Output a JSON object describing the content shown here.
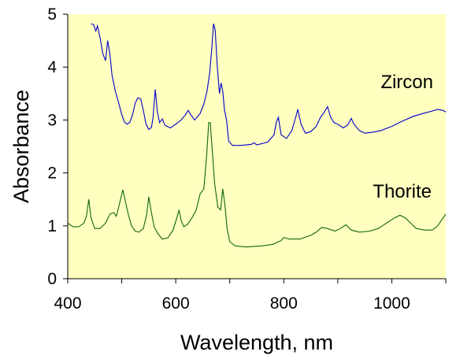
{
  "chart_data": {
    "type": "line",
    "title": "",
    "xlabel": "Wavelength, nm",
    "ylabel": "Absorbance",
    "xlim": [
      400,
      1100
    ],
    "ylim": [
      0,
      5
    ],
    "xticks": [
      400,
      600,
      800,
      1000
    ],
    "yticks": [
      0,
      1,
      2,
      3,
      4,
      5
    ],
    "grid": false,
    "legend": "inline",
    "plot_background": "#ffffc0",
    "series": [
      {
        "name": "Zircon",
        "color": "#0000cc",
        "points": [
          [
            443,
            4.82
          ],
          [
            448,
            4.8
          ],
          [
            452,
            4.68
          ],
          [
            455,
            4.78
          ],
          [
            460,
            4.55
          ],
          [
            465,
            4.25
          ],
          [
            470,
            4.12
          ],
          [
            474,
            4.5
          ],
          [
            478,
            4.25
          ],
          [
            482,
            3.85
          ],
          [
            488,
            3.55
          ],
          [
            495,
            3.3
          ],
          [
            500,
            3.1
          ],
          [
            505,
            2.96
          ],
          [
            510,
            2.92
          ],
          [
            515,
            2.96
          ],
          [
            520,
            3.1
          ],
          [
            525,
            3.32
          ],
          [
            530,
            3.42
          ],
          [
            535,
            3.4
          ],
          [
            540,
            3.18
          ],
          [
            545,
            2.92
          ],
          [
            550,
            2.82
          ],
          [
            555,
            2.86
          ],
          [
            558,
            3.05
          ],
          [
            562,
            3.58
          ],
          [
            566,
            3.15
          ],
          [
            570,
            2.95
          ],
          [
            575,
            3.02
          ],
          [
            580,
            2.9
          ],
          [
            590,
            2.85
          ],
          [
            600,
            2.92
          ],
          [
            610,
            3.0
          ],
          [
            618,
            3.1
          ],
          [
            623,
            3.18
          ],
          [
            628,
            3.1
          ],
          [
            635,
            3.0
          ],
          [
            645,
            3.12
          ],
          [
            652,
            3.3
          ],
          [
            658,
            3.55
          ],
          [
            663,
            3.9
          ],
          [
            667,
            4.4
          ],
          [
            670,
            4.82
          ],
          [
            673,
            4.7
          ],
          [
            677,
            4.0
          ],
          [
            681,
            3.5
          ],
          [
            684,
            3.7
          ],
          [
            687,
            3.55
          ],
          [
            690,
            3.2
          ],
          [
            694,
            3.0
          ],
          [
            698,
            2.6
          ],
          [
            705,
            2.52
          ],
          [
            720,
            2.52
          ],
          [
            740,
            2.54
          ],
          [
            745,
            2.57
          ],
          [
            750,
            2.53
          ],
          [
            770,
            2.58
          ],
          [
            782,
            2.72
          ],
          [
            786,
            2.95
          ],
          [
            790,
            3.05
          ],
          [
            795,
            2.72
          ],
          [
            805,
            2.65
          ],
          [
            815,
            2.8
          ],
          [
            822,
            3.05
          ],
          [
            826,
            3.2
          ],
          [
            832,
            2.92
          ],
          [
            840,
            2.75
          ],
          [
            850,
            2.78
          ],
          [
            860,
            2.88
          ],
          [
            868,
            3.05
          ],
          [
            875,
            3.15
          ],
          [
            881,
            3.25
          ],
          [
            887,
            3.05
          ],
          [
            893,
            2.95
          ],
          [
            900,
            2.92
          ],
          [
            910,
            2.85
          ],
          [
            918,
            2.9
          ],
          [
            925,
            3.03
          ],
          [
            930,
            2.92
          ],
          [
            940,
            2.8
          ],
          [
            950,
            2.75
          ],
          [
            965,
            2.77
          ],
          [
            980,
            2.8
          ],
          [
            1000,
            2.88
          ],
          [
            1020,
            2.98
          ],
          [
            1040,
            3.07
          ],
          [
            1060,
            3.13
          ],
          [
            1075,
            3.17
          ],
          [
            1085,
            3.2
          ],
          [
            1095,
            3.18
          ],
          [
            1100,
            3.15
          ]
        ]
      },
      {
        "name": "Thorite",
        "color": "#116611",
        "points": [
          [
            400,
            1.05
          ],
          [
            410,
            0.98
          ],
          [
            420,
            0.98
          ],
          [
            430,
            1.05
          ],
          [
            435,
            1.2
          ],
          [
            439,
            1.5
          ],
          [
            443,
            1.15
          ],
          [
            450,
            0.95
          ],
          [
            460,
            0.95
          ],
          [
            470,
            1.05
          ],
          [
            478,
            1.22
          ],
          [
            485,
            1.25
          ],
          [
            490,
            1.18
          ],
          [
            495,
            1.38
          ],
          [
            502,
            1.68
          ],
          [
            507,
            1.45
          ],
          [
            512,
            1.22
          ],
          [
            518,
            1.0
          ],
          [
            525,
            0.9
          ],
          [
            532,
            0.88
          ],
          [
            540,
            0.95
          ],
          [
            546,
            1.2
          ],
          [
            550,
            1.55
          ],
          [
            554,
            1.3
          ],
          [
            560,
            0.98
          ],
          [
            567,
            0.85
          ],
          [
            575,
            0.75
          ],
          [
            585,
            0.77
          ],
          [
            595,
            0.92
          ],
          [
            602,
            1.15
          ],
          [
            606,
            1.3
          ],
          [
            610,
            1.1
          ],
          [
            615,
            0.98
          ],
          [
            622,
            1.03
          ],
          [
            630,
            1.15
          ],
          [
            638,
            1.3
          ],
          [
            645,
            1.6
          ],
          [
            652,
            1.7
          ],
          [
            657,
            2.3
          ],
          [
            661,
            2.95
          ],
          [
            664,
            2.95
          ],
          [
            667,
            2.5
          ],
          [
            672,
            1.8
          ],
          [
            678,
            1.35
          ],
          [
            683,
            1.3
          ],
          [
            687,
            1.7
          ],
          [
            691,
            1.4
          ],
          [
            695,
            0.95
          ],
          [
            700,
            0.7
          ],
          [
            710,
            0.62
          ],
          [
            730,
            0.6
          ],
          [
            760,
            0.62
          ],
          [
            780,
            0.65
          ],
          [
            795,
            0.72
          ],
          [
            800,
            0.78
          ],
          [
            810,
            0.75
          ],
          [
            830,
            0.75
          ],
          [
            850,
            0.82
          ],
          [
            860,
            0.88
          ],
          [
            870,
            0.97
          ],
          [
            880,
            0.95
          ],
          [
            895,
            0.9
          ],
          [
            905,
            0.95
          ],
          [
            915,
            1.02
          ],
          [
            925,
            0.92
          ],
          [
            940,
            0.88
          ],
          [
            960,
            0.9
          ],
          [
            975,
            0.95
          ],
          [
            990,
            1.05
          ],
          [
            1005,
            1.15
          ],
          [
            1015,
            1.2
          ],
          [
            1025,
            1.15
          ],
          [
            1035,
            1.05
          ],
          [
            1045,
            0.95
          ],
          [
            1060,
            0.92
          ],
          [
            1075,
            0.92
          ],
          [
            1085,
            1.0
          ],
          [
            1095,
            1.15
          ],
          [
            1100,
            1.22
          ]
        ]
      }
    ]
  }
}
